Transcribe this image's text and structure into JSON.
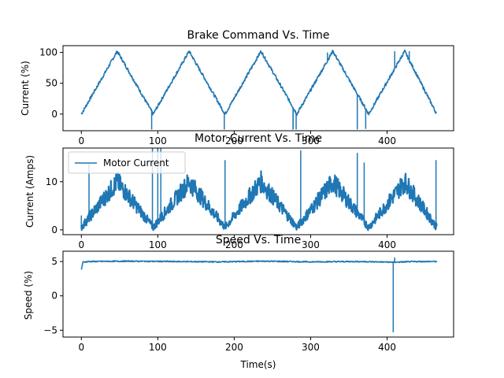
{
  "chart_data": [
    {
      "type": "line",
      "title": "Brake Command Vs. Time",
      "xlabel": "",
      "ylabel": "Current (%)",
      "xlim": [
        -24,
        487
      ],
      "ylim": [
        -27,
        111
      ],
      "xticks": [
        0,
        100,
        200,
        300,
        400
      ],
      "yticks": [
        0,
        50,
        100
      ],
      "color": "#1f77b4",
      "x": [
        0,
        47,
        94,
        141,
        188,
        235,
        282,
        329,
        376,
        423,
        465
      ],
      "series": [
        {
          "values": [
            0,
            102,
            0,
            102,
            0,
            102,
            0,
            102,
            0,
            102,
            0
          ]
        }
      ],
      "spikes": [
        {
          "x": 92,
          "y": -25
        },
        {
          "x": 103,
          "y": 20
        },
        {
          "x": 187,
          "y": -25
        },
        {
          "x": 277,
          "y": -25
        },
        {
          "x": 281,
          "y": -25
        },
        {
          "x": 277,
          "y": -25
        },
        {
          "x": 372,
          "y": -24
        },
        {
          "x": 361,
          "y": -25
        },
        {
          "x": 322,
          "y": 100
        },
        {
          "x": 410,
          "y": 102
        },
        {
          "x": 429,
          "y": 102
        }
      ]
    },
    {
      "type": "line",
      "title": "Motor Current Vs. Time",
      "xlabel": "",
      "ylabel": "Current (Amps)",
      "xlim": [
        -24,
        487
      ],
      "ylim": [
        -1,
        17
      ],
      "xticks": [
        0,
        100,
        200,
        300,
        400
      ],
      "yticks": [
        0,
        10
      ],
      "color": "#1f77b4",
      "legend": [
        {
          "name": "Motor Current",
          "color": "#1f77b4"
        }
      ],
      "legend_position": "upper-left",
      "x": [
        0,
        47,
        94,
        141,
        188,
        235,
        282,
        329,
        376,
        423,
        465
      ],
      "series": [
        {
          "name": "Motor Current",
          "values": [
            0.5,
            10,
            0.5,
            10,
            0.5,
            10,
            0.5,
            10,
            0.5,
            10,
            0.5
          ]
        }
      ],
      "spikes": [
        {
          "x": 0,
          "y": 3
        },
        {
          "x": 10,
          "y": 14
        },
        {
          "x": 93,
          "y": 17
        },
        {
          "x": 100,
          "y": 17
        },
        {
          "x": 104,
          "y": 17
        },
        {
          "x": 188,
          "y": 14.5
        },
        {
          "x": 287,
          "y": 16.5
        },
        {
          "x": 361,
          "y": 16
        },
        {
          "x": 370,
          "y": 14
        },
        {
          "x": 464,
          "y": 14.5
        }
      ]
    },
    {
      "type": "line",
      "title": "Speed Vs. Time",
      "xlabel": "Time(s)",
      "ylabel": "Speed (%)",
      "xlim": [
        -24,
        487
      ],
      "ylim": [
        -6,
        6.5
      ],
      "xticks": [
        0,
        100,
        200,
        300,
        400
      ],
      "yticks": [
        -5,
        0,
        5
      ],
      "color": "#1f77b4",
      "x": [
        0,
        2,
        10,
        60,
        120,
        180,
        240,
        300,
        360,
        410,
        440,
        465
      ],
      "series": [
        {
          "values": [
            3.8,
            4.9,
            5.0,
            5.05,
            5.0,
            4.95,
            5.05,
            4.95,
            5.0,
            4.9,
            5.0,
            5.0
          ]
        }
      ],
      "spikes": [
        {
          "x": 408,
          "y": -5.3
        },
        {
          "x": 410,
          "y": 5.6
        }
      ]
    }
  ]
}
